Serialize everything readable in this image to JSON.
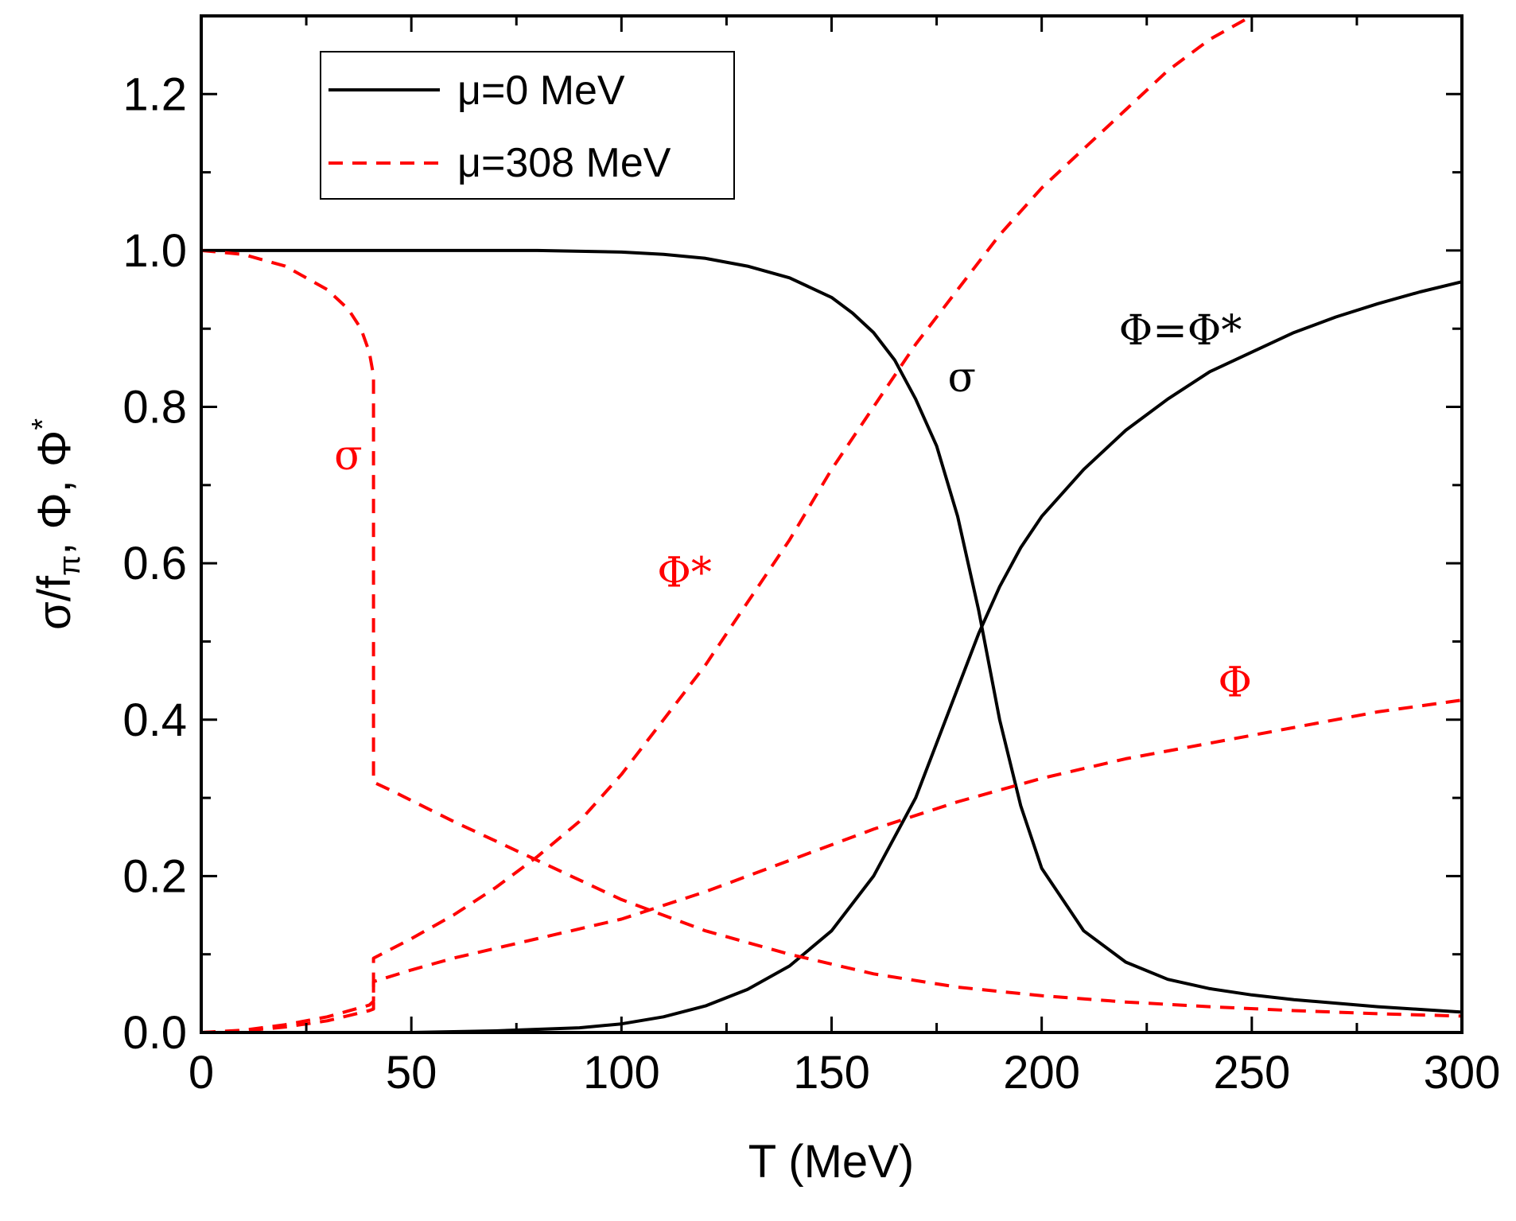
{
  "chart_data": {
    "type": "line",
    "xlabel": "T (MeV)",
    "ylabel_parts": {
      "a": "σ/f",
      "sub": "π",
      "b": ", Φ, Φ",
      "sup": "*"
    },
    "xlim": [
      0,
      300
    ],
    "ylim": [
      0,
      1.3
    ],
    "x_ticks": [
      0,
      50,
      100,
      150,
      200,
      250,
      300
    ],
    "y_ticks": [
      0.0,
      0.2,
      0.4,
      0.6,
      0.8,
      1.0,
      1.2
    ],
    "x_tick_labels": [
      "0",
      "50",
      "100",
      "150",
      "200",
      "250",
      "300"
    ],
    "y_tick_labels": [
      "0.0",
      "0.2",
      "0.4",
      "0.6",
      "0.8",
      "1.0",
      "1.2"
    ],
    "grid": false,
    "legend_position": "top-left",
    "legend": [
      {
        "label": "μ=0 MeV",
        "color": "#000000",
        "style": "solid"
      },
      {
        "label": "μ=308 MeV",
        "color": "#ff0000",
        "style": "dashed"
      }
    ],
    "series": [
      {
        "group": "μ=0 MeV",
        "curve": "sigma",
        "color": "#000000",
        "style": "solid",
        "x": [
          0,
          20,
          40,
          60,
          80,
          100,
          110,
          120,
          130,
          140,
          150,
          155,
          160,
          165,
          170,
          175,
          180,
          185,
          190,
          195,
          200,
          210,
          220,
          230,
          240,
          250,
          260,
          280,
          300
        ],
        "y": [
          1.0,
          1.0,
          1.0,
          1.0,
          1.0,
          0.998,
          0.995,
          0.99,
          0.98,
          0.965,
          0.94,
          0.92,
          0.895,
          0.86,
          0.81,
          0.75,
          0.66,
          0.54,
          0.4,
          0.29,
          0.21,
          0.13,
          0.09,
          0.068,
          0.056,
          0.048,
          0.042,
          0.033,
          0.026
        ]
      },
      {
        "group": "μ=0 MeV",
        "curve": "Phi=Phi*",
        "color": "#000000",
        "style": "solid",
        "x": [
          50,
          70,
          90,
          100,
          110,
          120,
          130,
          140,
          150,
          160,
          170,
          175,
          180,
          185,
          190,
          195,
          200,
          210,
          220,
          230,
          240,
          250,
          260,
          270,
          280,
          290,
          300
        ],
        "y": [
          0.0,
          0.002,
          0.006,
          0.011,
          0.02,
          0.034,
          0.055,
          0.085,
          0.13,
          0.2,
          0.3,
          0.37,
          0.44,
          0.51,
          0.57,
          0.62,
          0.66,
          0.72,
          0.77,
          0.81,
          0.845,
          0.87,
          0.895,
          0.915,
          0.932,
          0.947,
          0.96
        ]
      },
      {
        "group": "μ=308 MeV",
        "curve": "sigma",
        "color": "#ff0000",
        "style": "dashed",
        "x": [
          0,
          10,
          20,
          30,
          35,
          38,
          40,
          41,
          41,
          45,
          60,
          80,
          100,
          120,
          140,
          160,
          180,
          200,
          220,
          240,
          260,
          280,
          300
        ],
        "y": [
          1.0,
          0.995,
          0.98,
          0.95,
          0.925,
          0.9,
          0.87,
          0.84,
          0.32,
          0.31,
          0.27,
          0.22,
          0.17,
          0.13,
          0.1,
          0.075,
          0.058,
          0.047,
          0.039,
          0.033,
          0.028,
          0.024,
          0.021
        ]
      },
      {
        "group": "μ=308 MeV",
        "curve": "Phi*",
        "color": "#ff0000",
        "style": "dashed",
        "x": [
          0,
          10,
          20,
          30,
          40,
          41,
          41,
          50,
          60,
          70,
          80,
          90,
          100,
          110,
          120,
          130,
          140,
          150,
          160,
          170,
          180,
          190,
          200,
          210,
          220,
          230,
          240,
          250
        ],
        "y": [
          0.0,
          0.003,
          0.01,
          0.02,
          0.035,
          0.04,
          0.095,
          0.12,
          0.15,
          0.185,
          0.225,
          0.27,
          0.33,
          0.4,
          0.47,
          0.55,
          0.63,
          0.72,
          0.8,
          0.88,
          0.95,
          1.02,
          1.08,
          1.13,
          1.18,
          1.23,
          1.27,
          1.3
        ]
      },
      {
        "group": "μ=308 MeV",
        "curve": "Phi",
        "color": "#ff0000",
        "style": "dashed",
        "x": [
          0,
          10,
          20,
          30,
          40,
          41,
          41,
          50,
          60,
          80,
          100,
          120,
          140,
          160,
          180,
          200,
          220,
          240,
          260,
          280,
          300
        ],
        "y": [
          0.0,
          0.002,
          0.007,
          0.015,
          0.028,
          0.03,
          0.065,
          0.08,
          0.095,
          0.12,
          0.145,
          0.18,
          0.22,
          0.26,
          0.295,
          0.325,
          0.35,
          0.37,
          0.39,
          0.41,
          0.425
        ]
      }
    ],
    "annotations": [
      {
        "text": "σ",
        "x": 181,
        "y": 0.82,
        "color": "#000000"
      },
      {
        "text": "Φ=Φ*",
        "x": 233,
        "y": 0.88,
        "color": "#000000"
      },
      {
        "text": "σ",
        "x": 35,
        "y": 0.72,
        "color": "#ff0000"
      },
      {
        "text": "Φ*",
        "x": 115,
        "y": 0.57,
        "color": "#ff0000"
      },
      {
        "text": "Φ",
        "x": 246,
        "y": 0.43,
        "color": "#ff0000"
      }
    ]
  }
}
